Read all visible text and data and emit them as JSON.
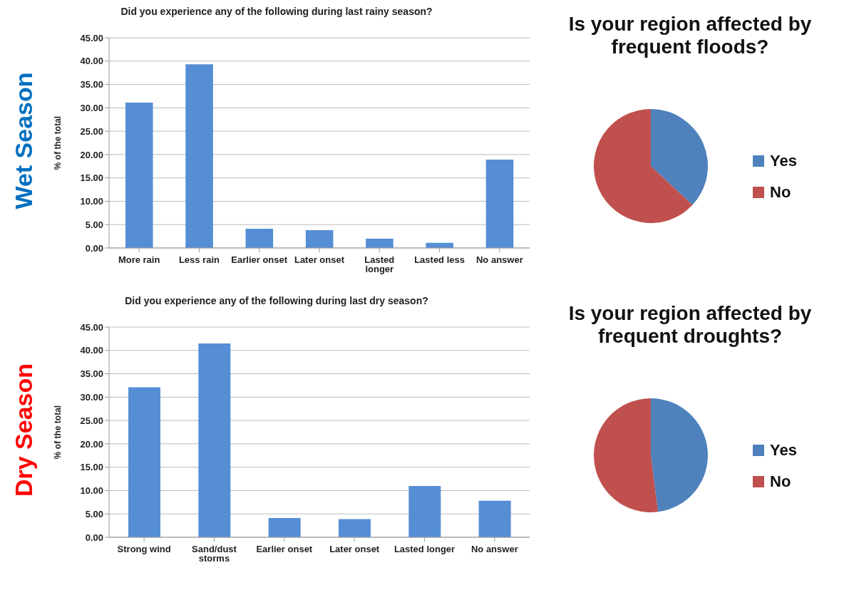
{
  "chart_data": [
    {
      "type": "bar",
      "title": "Did you experience any of the following during last rainy season?",
      "ylabel": "% of the total",
      "annotations": [
        "Wet Season"
      ],
      "categories": [
        "More rain",
        "Less rain",
        "Earlier onset",
        "Later onset",
        "Lasted longer",
        "Lasted less",
        "No answer"
      ],
      "values": [
        31.1,
        39.3,
        4.1,
        3.8,
        2.0,
        1.1,
        18.9
      ],
      "color": "#558ed5",
      "ylim": [
        0,
        45
      ],
      "yticks": [
        {
          "value": 0,
          "label": "0.00"
        },
        {
          "value": 5,
          "label": "5.00"
        },
        {
          "value": 10,
          "label": "10.00"
        },
        {
          "value": 15,
          "label": "15.00"
        },
        {
          "value": 20,
          "label": "20.00"
        },
        {
          "value": 25,
          "label": "25.00"
        },
        {
          "value": 30,
          "label": "30.00"
        },
        {
          "value": 35,
          "label": "35.00"
        },
        {
          "value": 40,
          "label": "40.00"
        },
        {
          "value": 45,
          "label": "45.00"
        }
      ],
      "grid": "y"
    },
    {
      "type": "pie",
      "title": "Is your region affected by frequent floods?",
      "categories": [
        "Yes",
        "No"
      ],
      "values": [
        37,
        63
      ],
      "colors": [
        "#4f81bd",
        "#c0504d"
      ],
      "legend": "right"
    },
    {
      "type": "bar",
      "title": "Did you experience any of the following during last dry season?",
      "ylabel": "% of the total",
      "annotations": [
        "Dry Season"
      ],
      "categories": [
        "Strong wind",
        "Sand/dust storms",
        "Earlier onset",
        "Later onset",
        "Lasted longer",
        "No answer"
      ],
      "values": [
        32.1,
        41.5,
        4.1,
        3.9,
        11.0,
        7.8
      ],
      "color": "#558ed5",
      "ylim": [
        0,
        45
      ],
      "yticks": [
        {
          "value": 0,
          "label": "0.00"
        },
        {
          "value": 5,
          "label": "5.00"
        },
        {
          "value": 10,
          "label": "10.00"
        },
        {
          "value": 15,
          "label": "15.00"
        },
        {
          "value": 20,
          "label": "20.00"
        },
        {
          "value": 25,
          "label": "25.00"
        },
        {
          "value": 30,
          "label": "30.00"
        },
        {
          "value": 35,
          "label": "35.00"
        },
        {
          "value": 40,
          "label": "40.00"
        },
        {
          "value": 45,
          "label": "45.00"
        }
      ],
      "grid": "y"
    },
    {
      "type": "pie",
      "title": "Is your region affected by frequent droughts?",
      "categories": [
        "Yes",
        "No"
      ],
      "values": [
        48,
        52
      ],
      "colors": [
        "#4f81bd",
        "#c0504d"
      ],
      "legend": "right"
    }
  ]
}
